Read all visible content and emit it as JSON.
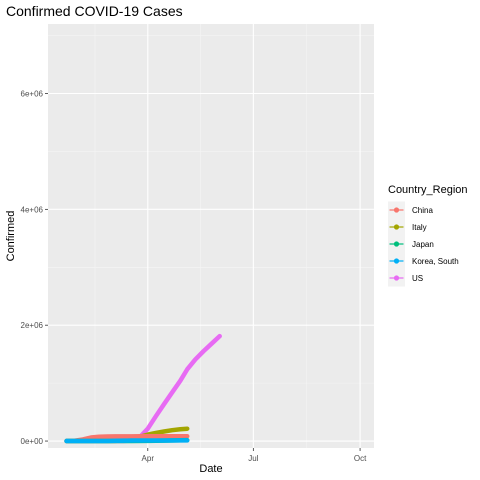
{
  "chart_data": {
    "type": "line",
    "title": "Confirmed COVID-19 Cases",
    "xlabel": "Date",
    "ylabel": "Confirmed",
    "x_range": [
      "2020-01-06",
      "2020-10-13"
    ],
    "y_range": [
      -120000,
      7200000
    ],
    "x_ticks": [
      {
        "date": "2020-04-01",
        "label": "Apr"
      },
      {
        "date": "2020-07-01",
        "label": "Jul"
      },
      {
        "date": "2020-10-01",
        "label": "Oct"
      }
    ],
    "y_ticks": [
      {
        "value": 0,
        "label": "0e+00"
      },
      {
        "value": 2000000,
        "label": "2e+06"
      },
      {
        "value": 4000000,
        "label": "4e+06"
      },
      {
        "value": 6000000,
        "label": "6e+06"
      }
    ],
    "grid": true,
    "legend": {
      "title": "Country_Region",
      "position": "right"
    },
    "series": [
      {
        "name": "China",
        "color": "#F8766D",
        "points": [
          [
            "2020-01-22",
            548
          ],
          [
            "2020-01-29",
            6087
          ],
          [
            "2020-02-05",
            28060
          ],
          [
            "2020-02-12",
            60364
          ],
          [
            "2020-02-19",
            74577
          ],
          [
            "2020-02-26",
            78630
          ],
          [
            "2020-03-04",
            80422
          ],
          [
            "2020-03-11",
            80921
          ],
          [
            "2020-03-18",
            81250
          ],
          [
            "2020-03-25",
            81848
          ],
          [
            "2020-04-01",
            82361
          ],
          [
            "2020-04-08",
            82809
          ],
          [
            "2020-04-15",
            83356
          ],
          [
            "2020-04-22",
            83868
          ],
          [
            "2020-04-29",
            83944
          ],
          [
            "2020-05-05",
            83966
          ]
        ]
      },
      {
        "name": "Italy",
        "color": "#A3A500",
        "points": [
          [
            "2020-01-22",
            0
          ],
          [
            "2020-02-19",
            3
          ],
          [
            "2020-02-26",
            453
          ],
          [
            "2020-03-04",
            3089
          ],
          [
            "2020-03-11",
            12462
          ],
          [
            "2020-03-18",
            35713
          ],
          [
            "2020-03-25",
            74386
          ],
          [
            "2020-04-01",
            110574
          ],
          [
            "2020-04-08",
            139422
          ],
          [
            "2020-04-15",
            165155
          ],
          [
            "2020-04-22",
            187327
          ],
          [
            "2020-04-29",
            203591
          ],
          [
            "2020-05-05",
            213013
          ]
        ]
      },
      {
        "name": "Japan",
        "color": "#00BF7D",
        "points": [
          [
            "2020-01-22",
            2
          ],
          [
            "2020-02-19",
            84
          ],
          [
            "2020-03-04",
            293
          ],
          [
            "2020-03-18",
            878
          ],
          [
            "2020-04-01",
            2384
          ],
          [
            "2020-04-15",
            8100
          ],
          [
            "2020-04-29",
            14088
          ],
          [
            "2020-05-05",
            15231
          ]
        ]
      },
      {
        "name": "Korea, South",
        "color": "#00B0F6",
        "points": [
          [
            "2020-01-22",
            1
          ],
          [
            "2020-02-19",
            31
          ],
          [
            "2020-02-26",
            1261
          ],
          [
            "2020-03-04",
            5621
          ],
          [
            "2020-03-11",
            7755
          ],
          [
            "2020-03-18",
            8413
          ],
          [
            "2020-04-01",
            9887
          ],
          [
            "2020-04-15",
            10591
          ],
          [
            "2020-05-05",
            10806
          ]
        ]
      },
      {
        "name": "US",
        "color": "#E76BF3",
        "points": [
          [
            "2020-01-22",
            1
          ],
          [
            "2020-02-26",
            60
          ],
          [
            "2020-03-11",
            1281
          ],
          [
            "2020-03-18",
            7786
          ],
          [
            "2020-03-25",
            65778
          ],
          [
            "2020-04-01",
            213372
          ],
          [
            "2020-04-08",
            429052
          ],
          [
            "2020-04-15",
            636350
          ],
          [
            "2020-04-22",
            839675
          ],
          [
            "2020-04-29",
            1039909
          ],
          [
            "2020-05-05",
            1237633
          ],
          [
            "2020-05-12",
            1408636
          ],
          [
            "2020-05-19",
            1550294
          ],
          [
            "2020-05-26",
            1681212
          ],
          [
            "2020-06-02",
            1811277
          ]
        ]
      }
    ]
  }
}
